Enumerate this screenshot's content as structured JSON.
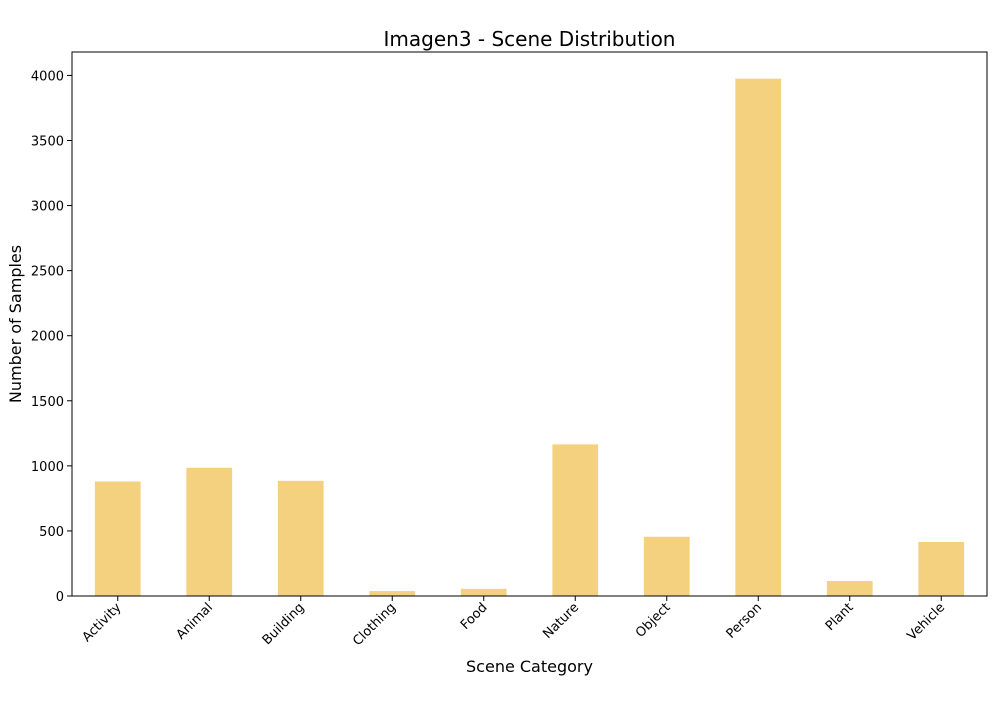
{
  "chart_data": {
    "type": "bar",
    "title": "Imagen3 - Scene Distribution",
    "xlabel": "Scene Category",
    "ylabel": "Number of Samples",
    "categories": [
      "Activity",
      "Animal",
      "Building",
      "Clothing",
      "Food",
      "Nature",
      "Object",
      "Person",
      "Plant",
      "Vehicle"
    ],
    "values": [
      880,
      985,
      885,
      38,
      55,
      1165,
      455,
      3975,
      115,
      415
    ],
    "ylim": [
      0,
      4180
    ],
    "yticks": [
      0,
      500,
      1000,
      1500,
      2000,
      2500,
      3000,
      3500,
      4000
    ],
    "grid": false,
    "bar_color": "#f3d17f"
  }
}
